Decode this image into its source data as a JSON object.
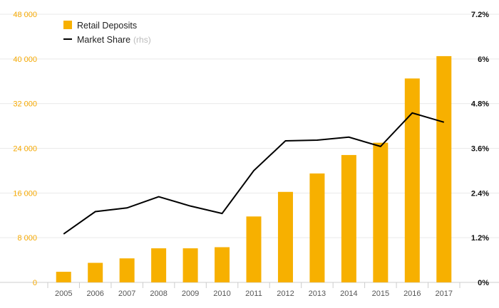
{
  "chart_data": {
    "type": "bar",
    "categories": [
      "2005",
      "2006",
      "2007",
      "2008",
      "2009",
      "2010",
      "2011",
      "2012",
      "2013",
      "2014",
      "2015",
      "2016",
      "2017"
    ],
    "series": [
      {
        "name": "Retail Deposits",
        "type": "bar",
        "axis": "left",
        "color": "#f7b000",
        "values": [
          1900,
          3500,
          4300,
          6100,
          6100,
          6300,
          11800,
          16200,
          19500,
          22800,
          25000,
          36500,
          40500
        ]
      },
      {
        "name": "Market Share",
        "name_note": "(rhs)",
        "type": "line",
        "axis": "right",
        "color": "#000000",
        "values": [
          1.3,
          1.9,
          2.0,
          2.3,
          2.05,
          1.85,
          3.0,
          3.8,
          3.82,
          3.9,
          3.65,
          4.55,
          4.3
        ]
      }
    ],
    "y_left": {
      "min": 0,
      "max": 48000,
      "ticks": [
        0,
        8000,
        16000,
        24000,
        32000,
        40000,
        48000
      ],
      "tick_labels": [
        "0",
        "8 000",
        "16 000",
        "24 000",
        "32 000",
        "40 000",
        "48 000"
      ],
      "color": "#f5a800"
    },
    "y_right": {
      "min": 0,
      "max": 7.2,
      "ticks": [
        0,
        1.2,
        2.4,
        3.6,
        4.8,
        6,
        7.2
      ],
      "tick_labels": [
        "0%",
        "1.2%",
        "2.4%",
        "3.6%",
        "4.8%",
        "6%",
        "7.2%"
      ],
      "color": "#111111"
    },
    "grid": true,
    "legend": "top-left"
  }
}
